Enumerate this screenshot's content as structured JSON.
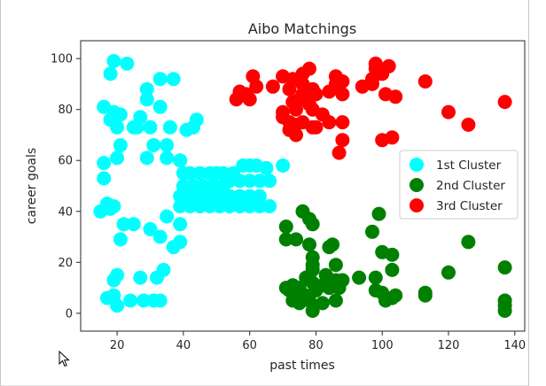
{
  "chart_data": {
    "type": "scatter",
    "title": "Aibo Matchings",
    "xlabel": "past times",
    "ylabel": "career goals",
    "xlim": [
      9,
      143
    ],
    "ylim": [
      -7,
      107
    ],
    "xticks": [
      20,
      40,
      60,
      80,
      100,
      120,
      140
    ],
    "yticks": [
      0,
      20,
      40,
      60,
      80,
      100
    ],
    "legend_position": "center-right",
    "series": [
      {
        "name": "1st Cluster",
        "color": "#00ffff",
        "points": [
          [
            19,
            99
          ],
          [
            23,
            98
          ],
          [
            18,
            94
          ],
          [
            33,
            92
          ],
          [
            37,
            92
          ],
          [
            29,
            88
          ],
          [
            29,
            84
          ],
          [
            16,
            81
          ],
          [
            33,
            81
          ],
          [
            19,
            79
          ],
          [
            21,
            78
          ],
          [
            18,
            76
          ],
          [
            25,
            73
          ],
          [
            26,
            73
          ],
          [
            30,
            73
          ],
          [
            36,
            73
          ],
          [
            20,
            73
          ],
          [
            27,
            77
          ],
          [
            44,
            76
          ],
          [
            43,
            73
          ],
          [
            41,
            72
          ],
          [
            21,
            66
          ],
          [
            31,
            66
          ],
          [
            35,
            66
          ],
          [
            20,
            61
          ],
          [
            16,
            59
          ],
          [
            29,
            61
          ],
          [
            35,
            61
          ],
          [
            39,
            60
          ],
          [
            40,
            55
          ],
          [
            42,
            55
          ],
          [
            45,
            55
          ],
          [
            48,
            55
          ],
          [
            50,
            55
          ],
          [
            52,
            55
          ],
          [
            55,
            55
          ],
          [
            58,
            58
          ],
          [
            60,
            58
          ],
          [
            62,
            58
          ],
          [
            65,
            57
          ],
          [
            70,
            58
          ],
          [
            16,
            53
          ],
          [
            40,
            50
          ],
          [
            43,
            50
          ],
          [
            46,
            50
          ],
          [
            49,
            50
          ],
          [
            52,
            50
          ],
          [
            54,
            52
          ],
          [
            57,
            52
          ],
          [
            60,
            52
          ],
          [
            63,
            52
          ],
          [
            66,
            52
          ],
          [
            39,
            46
          ],
          [
            42,
            46
          ],
          [
            45,
            46
          ],
          [
            48,
            46
          ],
          [
            51,
            46
          ],
          [
            54,
            46
          ],
          [
            57,
            46
          ],
          [
            60,
            46
          ],
          [
            63,
            46
          ],
          [
            39,
            42
          ],
          [
            42,
            42
          ],
          [
            45,
            42
          ],
          [
            48,
            42
          ],
          [
            51,
            42
          ],
          [
            54,
            42
          ],
          [
            57,
            42
          ],
          [
            60,
            42
          ],
          [
            63,
            42
          ],
          [
            66,
            42
          ],
          [
            17,
            43
          ],
          [
            19,
            42
          ],
          [
            15,
            40
          ],
          [
            18,
            41
          ],
          [
            22,
            35
          ],
          [
            25,
            35
          ],
          [
            35,
            38
          ],
          [
            30,
            33
          ],
          [
            39,
            35
          ],
          [
            21,
            29
          ],
          [
            33,
            30
          ],
          [
            39,
            28
          ],
          [
            37,
            26
          ],
          [
            20,
            15
          ],
          [
            19,
            13
          ],
          [
            27,
            14
          ],
          [
            32,
            14
          ],
          [
            34,
            17
          ],
          [
            19,
            7
          ],
          [
            17,
            6
          ],
          [
            24,
            5
          ],
          [
            31,
            5
          ],
          [
            33,
            5
          ],
          [
            20,
            3
          ],
          [
            28,
            5
          ]
        ]
      },
      {
        "name": "2nd Cluster",
        "color": "#008000",
        "points": [
          [
            76,
            40
          ],
          [
            78,
            37
          ],
          [
            71,
            34
          ],
          [
            79,
            35
          ],
          [
            99,
            39
          ],
          [
            74,
            29
          ],
          [
            71,
            29
          ],
          [
            97,
            32
          ],
          [
            78,
            27
          ],
          [
            84,
            26
          ],
          [
            85,
            27
          ],
          [
            126,
            28
          ],
          [
            79,
            22
          ],
          [
            100,
            24
          ],
          [
            103,
            23
          ],
          [
            79,
            19
          ],
          [
            79,
            17
          ],
          [
            86,
            19
          ],
          [
            77,
            14
          ],
          [
            79,
            12
          ],
          [
            83,
            15
          ],
          [
            86,
            13
          ],
          [
            88,
            13
          ],
          [
            93,
            14
          ],
          [
            98,
            14
          ],
          [
            103,
            17
          ],
          [
            120,
            16
          ],
          [
            137,
            18
          ],
          [
            71,
            10
          ],
          [
            72,
            9
          ],
          [
            73,
            11
          ],
          [
            74,
            8
          ],
          [
            75,
            10
          ],
          [
            77,
            7
          ],
          [
            80,
            9
          ],
          [
            82,
            11
          ],
          [
            84,
            10
          ],
          [
            87,
            10
          ],
          [
            98,
            9
          ],
          [
            100,
            8
          ],
          [
            104,
            7
          ],
          [
            113,
            8
          ],
          [
            113,
            7
          ],
          [
            73,
            5
          ],
          [
            75,
            4
          ],
          [
            78,
            5
          ],
          [
            79,
            1
          ],
          [
            82,
            4
          ],
          [
            86,
            5
          ],
          [
            101,
            5
          ],
          [
            103,
            6
          ],
          [
            137,
            5
          ],
          [
            137,
            3
          ],
          [
            137,
            1
          ]
        ]
      },
      {
        "name": "3rd Cluster",
        "color": "#ff0000",
        "points": [
          [
            98,
            98
          ],
          [
            102,
            97
          ],
          [
            98,
            96
          ],
          [
            78,
            96
          ],
          [
            100,
            94
          ],
          [
            76,
            94
          ],
          [
            70,
            93
          ],
          [
            61,
            93
          ],
          [
            86,
            93
          ],
          [
            73,
            92
          ],
          [
            97,
            92
          ],
          [
            67,
            89
          ],
          [
            76,
            90
          ],
          [
            86,
            90
          ],
          [
            72,
            88
          ],
          [
            62,
            89
          ],
          [
            57,
            87
          ],
          [
            79,
            88
          ],
          [
            88,
            91
          ],
          [
            94,
            89
          ],
          [
            97,
            90
          ],
          [
            113,
            91
          ],
          [
            59,
            86
          ],
          [
            56,
            84
          ],
          [
            76,
            86
          ],
          [
            88,
            86
          ],
          [
            101,
            86
          ],
          [
            80,
            86
          ],
          [
            78,
            85
          ],
          [
            75,
            84
          ],
          [
            73,
            83
          ],
          [
            84,
            87
          ],
          [
            60,
            84
          ],
          [
            104,
            85
          ],
          [
            120,
            79
          ],
          [
            137,
            83
          ],
          [
            70,
            77
          ],
          [
            72,
            75
          ],
          [
            74,
            74
          ],
          [
            76,
            75
          ],
          [
            79,
            73
          ],
          [
            80,
            73
          ],
          [
            84,
            75
          ],
          [
            88,
            75
          ],
          [
            126,
            74
          ],
          [
            72,
            72
          ],
          [
            74,
            70
          ],
          [
            88,
            68
          ],
          [
            100,
            68
          ],
          [
            103,
            69
          ],
          [
            87,
            63
          ],
          [
            79,
            80
          ],
          [
            78,
            82
          ],
          [
            74,
            80
          ],
          [
            70,
            79
          ],
          [
            82,
            78
          ]
        ]
      }
    ]
  }
}
